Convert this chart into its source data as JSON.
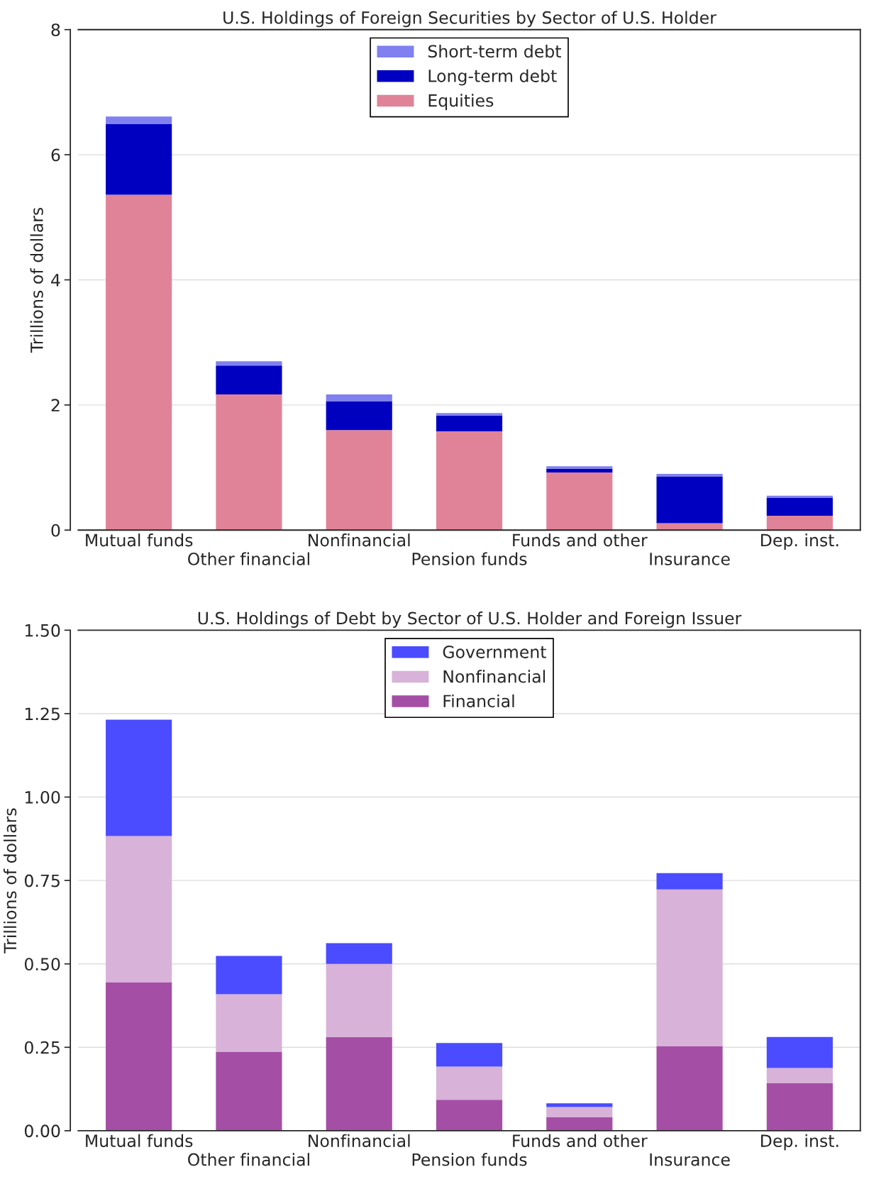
{
  "chart_data": [
    {
      "type": "bar",
      "title": "U.S. Holdings of Foreign Securities by Sector of U.S. Holder",
      "ylabel": "Trillions of dollars",
      "categories": [
        "Mutual funds",
        "Other financial",
        "Nonfinancial",
        "Pension funds",
        "Funds and other",
        "Insurance",
        "Dep. inst."
      ],
      "stacked": true,
      "ylim": [
        0,
        8
      ],
      "yticks": [
        0,
        2,
        4,
        6,
        8
      ],
      "grid": "y",
      "legend": "top",
      "series": [
        {
          "name": "Equities",
          "color": "#e08398",
          "values": [
            5.36,
            2.17,
            1.6,
            1.58,
            0.92,
            0.11,
            0.23
          ]
        },
        {
          "name": "Long-term debt",
          "color": "#0000c0",
          "values": [
            1.13,
            0.46,
            0.46,
            0.25,
            0.06,
            0.75,
            0.29
          ]
        },
        {
          "name": "Short-term debt",
          "color": "#8080f0",
          "values": [
            0.12,
            0.07,
            0.11,
            0.04,
            0.04,
            0.04,
            0.03
          ]
        }
      ]
    },
    {
      "type": "bar",
      "title": "U.S. Holdings of Debt by Sector of U.S. Holder and Foreign Issuer",
      "ylabel": "Trillions of dollars",
      "categories": [
        "Mutual funds",
        "Other financial",
        "Nonfinancial",
        "Pension funds",
        "Funds and other",
        "Insurance",
        "Dep. inst."
      ],
      "stacked": true,
      "ylim": [
        0,
        1.5
      ],
      "yticks": [
        {
          "value": 0,
          "label": "0.00"
        },
        {
          "value": 0.25,
          "label": "0.25"
        },
        {
          "value": 0.5,
          "label": "0.50"
        },
        {
          "value": 0.75,
          "label": "0.75"
        },
        {
          "value": 1,
          "label": "1.00"
        },
        {
          "value": 1.25,
          "label": "1.25"
        },
        {
          "value": 1.5,
          "label": "1.50"
        }
      ],
      "grid": "y",
      "legend": "top",
      "series": [
        {
          "name": "Financial",
          "color": "#a54ea5",
          "values": [
            0.445,
            0.237,
            0.281,
            0.093,
            0.04,
            0.254,
            0.142
          ]
        },
        {
          "name": "Nonfinancial",
          "color": "#d8b2d8",
          "values": [
            0.438,
            0.172,
            0.219,
            0.099,
            0.031,
            0.469,
            0.046
          ]
        },
        {
          "name": "Government",
          "color": "#4b4bff",
          "values": [
            0.349,
            0.115,
            0.062,
            0.071,
            0.011,
            0.049,
            0.093
          ]
        }
      ]
    }
  ]
}
